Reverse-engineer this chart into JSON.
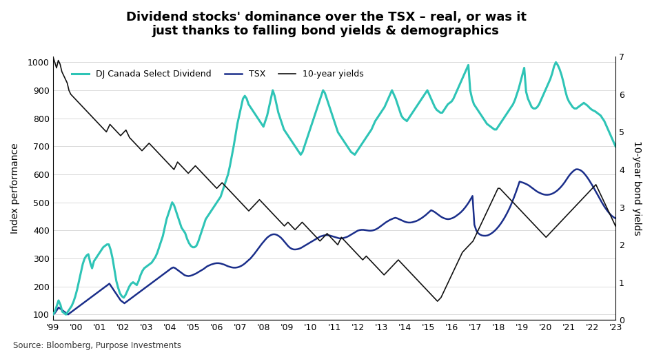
{
  "title": "Dividend stocks' dominance over the TSX – real, or was it\njust thanks to falling bond yields & demographics",
  "ylabel_left": "Index performance",
  "ylabel_right": "10-year bond yields",
  "source": "Source: Bloomberg, Purpose Investments",
  "legend_labels": [
    "DJ Canada Select Dividend",
    "TSX",
    "10-year yields"
  ],
  "colors": {
    "dividend": "#2ec4b6",
    "tsx": "#1a2e8a",
    "yields": "#111111"
  },
  "line_widths": {
    "dividend": 2.2,
    "tsx": 1.8,
    "yields": 1.2
  },
  "xlim": [
    0,
    24
  ],
  "ylim_left": [
    80,
    1020
  ],
  "ylim_right": [
    0,
    7
  ],
  "yticks_left": [
    100,
    200,
    300,
    400,
    500,
    600,
    700,
    800,
    900,
    1000
  ],
  "yticks_right": [
    0,
    1,
    2,
    3,
    4,
    5,
    6,
    7
  ],
  "xtick_labels": [
    "'99",
    "'00",
    "'01",
    "'02",
    "'03",
    "'04",
    "'05",
    "'06",
    "'07",
    "'08",
    "'09",
    "'10",
    "'11",
    "'12",
    "'13",
    "'14",
    "'15",
    "'16",
    "'17",
    "'18",
    "'19",
    "'20",
    "'21",
    "'22",
    "'23"
  ],
  "background_color": "#ffffff",
  "dividend_index": [
    100,
    110,
    130,
    150,
    135,
    110,
    105,
    100,
    110,
    120,
    130,
    145,
    165,
    190,
    220,
    250,
    280,
    300,
    310,
    315,
    285,
    265,
    290,
    300,
    310,
    320,
    330,
    340,
    345,
    350,
    350,
    330,
    300,
    260,
    220,
    195,
    175,
    165,
    160,
    170,
    185,
    200,
    210,
    215,
    210,
    205,
    220,
    240,
    255,
    265,
    270,
    275,
    280,
    285,
    295,
    305,
    320,
    340,
    360,
    380,
    410,
    440,
    460,
    480,
    500,
    490,
    470,
    450,
    430,
    410,
    400,
    390,
    370,
    355,
    345,
    340,
    340,
    345,
    360,
    380,
    400,
    420,
    440,
    450,
    460,
    470,
    480,
    490,
    500,
    510,
    520,
    540,
    560,
    580,
    600,
    630,
    665,
    700,
    740,
    780,
    810,
    840,
    870,
    880,
    870,
    850,
    840,
    830,
    820,
    810,
    800,
    790,
    780,
    770,
    790,
    810,
    840,
    870,
    900,
    880,
    850,
    820,
    800,
    780,
    760,
    750,
    740,
    730,
    720,
    710,
    700,
    690,
    680,
    670,
    680,
    700,
    720,
    740,
    760,
    780,
    800,
    820,
    840,
    860,
    880,
    900,
    890,
    870,
    850,
    830,
    810,
    790,
    770,
    750,
    740,
    730,
    720,
    710,
    700,
    690,
    680,
    675,
    670,
    680,
    690,
    700,
    710,
    720,
    730,
    740,
    750,
    760,
    775,
    790,
    800,
    810,
    820,
    830,
    840,
    855,
    870,
    885,
    900,
    885,
    870,
    850,
    830,
    810,
    800,
    795,
    790,
    800,
    810,
    820,
    830,
    840,
    850,
    860,
    870,
    880,
    890,
    900,
    885,
    870,
    855,
    840,
    830,
    825,
    820,
    820,
    830,
    840,
    850,
    855,
    860,
    870,
    885,
    900,
    915,
    930,
    945,
    960,
    975,
    990,
    900,
    870,
    850,
    840,
    830,
    820,
    810,
    800,
    790,
    780,
    775,
    770,
    765,
    760,
    760,
    770,
    780,
    790,
    800,
    810,
    820,
    830,
    840,
    850,
    865,
    885,
    905,
    930,
    955,
    980,
    895,
    870,
    855,
    840,
    835,
    835,
    840,
    850,
    865,
    880,
    895,
    910,
    925,
    940,
    960,
    985,
    1000,
    990,
    975,
    955,
    930,
    900,
    875,
    860,
    850,
    840,
    835,
    835,
    840,
    845,
    850,
    855,
    850,
    845,
    838,
    832,
    828,
    825,
    820,
    815,
    810,
    800,
    790,
    775,
    760,
    745,
    730,
    715,
    700
  ],
  "tsx_index": [
    100,
    105,
    115,
    125,
    120,
    115,
    110,
    105,
    100,
    105,
    110,
    115,
    120,
    125,
    130,
    135,
    140,
    145,
    150,
    155,
    160,
    165,
    170,
    175,
    180,
    185,
    190,
    195,
    200,
    205,
    210,
    200,
    190,
    180,
    170,
    160,
    150,
    145,
    140,
    145,
    150,
    155,
    160,
    165,
    170,
    175,
    180,
    185,
    190,
    195,
    200,
    205,
    210,
    215,
    220,
    225,
    230,
    235,
    240,
    245,
    250,
    255,
    260,
    265,
    268,
    265,
    260,
    255,
    250,
    245,
    240,
    238,
    237,
    238,
    240,
    243,
    246,
    250,
    254,
    258,
    262,
    267,
    272,
    275,
    278,
    280,
    282,
    283,
    283,
    282,
    280,
    278,
    275,
    272,
    270,
    268,
    267,
    267,
    268,
    270,
    273,
    277,
    282,
    288,
    294,
    300,
    308,
    316,
    325,
    334,
    343,
    352,
    360,
    368,
    375,
    380,
    384,
    386,
    386,
    384,
    380,
    375,
    368,
    360,
    352,
    344,
    338,
    334,
    332,
    332,
    333,
    335,
    338,
    342,
    346,
    350,
    354,
    358,
    362,
    366,
    370,
    374,
    378,
    380,
    382,
    383,
    383,
    382,
    380,
    378,
    376,
    374,
    372,
    371,
    372,
    374,
    376,
    379,
    383,
    387,
    391,
    395,
    399,
    401,
    402,
    402,
    401,
    400,
    399,
    399,
    400,
    402,
    405,
    409,
    414,
    419,
    424,
    429,
    433,
    437,
    440,
    443,
    445,
    443,
    440,
    437,
    434,
    431,
    429,
    428,
    428,
    429,
    431,
    433,
    436,
    440,
    444,
    449,
    454,
    460,
    466,
    472,
    469,
    465,
    460,
    455,
    450,
    446,
    443,
    441,
    440,
    441,
    443,
    446,
    450,
    455,
    460,
    466,
    473,
    481,
    490,
    500,
    511,
    523,
    420,
    400,
    390,
    385,
    382,
    381,
    381,
    382,
    385,
    389,
    394,
    400,
    407,
    415,
    424,
    434,
    445,
    457,
    470,
    484,
    500,
    517,
    535,
    554,
    574,
    572,
    570,
    567,
    564,
    560,
    555,
    550,
    545,
    540,
    536,
    533,
    530,
    528,
    527,
    527,
    528,
    530,
    533,
    537,
    542,
    548,
    555,
    563,
    572,
    582,
    592,
    601,
    608,
    614,
    618,
    618,
    616,
    612,
    606,
    598,
    589,
    579,
    568,
    557,
    545,
    533,
    521,
    509,
    497,
    486,
    476,
    467,
    459,
    452,
    447,
    443
  ],
  "yields_data": [
    7.0,
    6.85,
    6.7,
    6.9,
    6.8,
    6.6,
    6.5,
    6.4,
    6.3,
    6.1,
    6.0,
    5.95,
    5.9,
    5.85,
    5.8,
    5.75,
    5.7,
    5.65,
    5.6,
    5.55,
    5.5,
    5.45,
    5.4,
    5.35,
    5.3,
    5.25,
    5.2,
    5.15,
    5.1,
    5.05,
    5.0,
    5.1,
    5.2,
    5.15,
    5.1,
    5.05,
    5.0,
    4.95,
    4.9,
    4.95,
    5.0,
    5.05,
    4.95,
    4.85,
    4.8,
    4.75,
    4.7,
    4.65,
    4.6,
    4.55,
    4.5,
    4.55,
    4.6,
    4.65,
    4.7,
    4.65,
    4.6,
    4.55,
    4.5,
    4.45,
    4.4,
    4.35,
    4.3,
    4.25,
    4.2,
    4.15,
    4.1,
    4.05,
    4.0,
    4.1,
    4.2,
    4.15,
    4.1,
    4.05,
    4.0,
    3.95,
    3.9,
    3.95,
    4.0,
    4.05,
    4.1,
    4.05,
    4.0,
    3.95,
    3.9,
    3.85,
    3.8,
    3.75,
    3.7,
    3.65,
    3.6,
    3.55,
    3.5,
    3.55,
    3.6,
    3.65,
    3.6,
    3.55,
    3.5,
    3.45,
    3.4,
    3.35,
    3.3,
    3.25,
    3.2,
    3.15,
    3.1,
    3.05,
    3.0,
    2.95,
    2.9,
    2.95,
    3.0,
    3.05,
    3.1,
    3.15,
    3.2,
    3.15,
    3.1,
    3.05,
    3.0,
    2.95,
    2.9,
    2.85,
    2.8,
    2.75,
    2.7,
    2.65,
    2.6,
    2.55,
    2.5,
    2.55,
    2.6,
    2.55,
    2.5,
    2.45,
    2.4,
    2.45,
    2.5,
    2.55,
    2.6,
    2.55,
    2.5,
    2.45,
    2.4,
    2.35,
    2.3,
    2.25,
    2.2,
    2.15,
    2.1,
    2.15,
    2.2,
    2.25,
    2.3,
    2.25,
    2.2,
    2.15,
    2.1,
    2.05,
    2.0,
    2.1,
    2.2,
    2.15,
    2.1,
    2.05,
    2.0,
    1.95,
    1.9,
    1.85,
    1.8,
    1.75,
    1.7,
    1.65,
    1.6,
    1.65,
    1.7,
    1.65,
    1.6,
    1.55,
    1.5,
    1.45,
    1.4,
    1.35,
    1.3,
    1.25,
    1.2,
    1.25,
    1.3,
    1.35,
    1.4,
    1.45,
    1.5,
    1.55,
    1.6,
    1.55,
    1.5,
    1.45,
    1.4,
    1.35,
    1.3,
    1.25,
    1.2,
    1.15,
    1.1,
    1.05,
    1.0,
    0.95,
    0.9,
    0.85,
    0.8,
    0.75,
    0.7,
    0.65,
    0.6,
    0.55,
    0.5,
    0.55,
    0.6,
    0.7,
    0.8,
    0.9,
    1.0,
    1.1,
    1.2,
    1.3,
    1.4,
    1.5,
    1.6,
    1.7,
    1.8,
    1.85,
    1.9,
    1.95,
    2.0,
    2.05,
    2.1,
    2.2,
    2.3,
    2.4,
    2.5,
    2.6,
    2.7,
    2.8,
    2.9,
    3.0,
    3.1,
    3.2,
    3.3,
    3.4,
    3.5,
    3.5,
    3.45,
    3.4,
    3.35,
    3.3,
    3.25,
    3.2,
    3.15,
    3.1,
    3.05,
    3.0,
    2.95,
    2.9,
    2.85,
    2.8,
    2.75,
    2.7,
    2.65,
    2.6,
    2.55,
    2.5,
    2.45,
    2.4,
    2.35,
    2.3,
    2.25,
    2.2,
    2.25,
    2.3,
    2.35,
    2.4,
    2.45,
    2.5,
    2.55,
    2.6,
    2.65,
    2.7,
    2.75,
    2.8,
    2.85,
    2.9,
    2.95,
    3.0,
    3.05,
    3.1,
    3.15,
    3.2,
    3.25,
    3.3,
    3.35,
    3.4,
    3.45,
    3.5,
    3.55,
    3.6,
    3.5,
    3.4,
    3.3,
    3.2,
    3.1,
    3.0,
    2.9,
    2.8,
    2.7,
    2.6,
    2.5
  ]
}
